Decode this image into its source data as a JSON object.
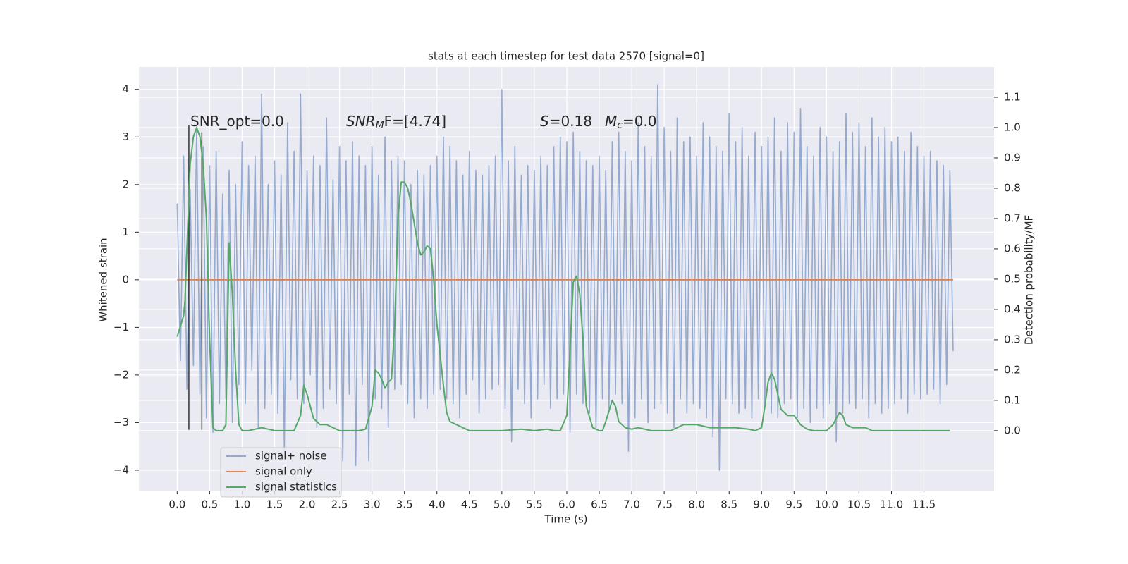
{
  "chart_data": {
    "type": "line",
    "title": "stats at each timestep for test data 2570 [signal=0]",
    "xlabel": "Time (s)",
    "ylabel": "Whitened strain",
    "y2label": "Detection probability/MF",
    "xlim": [
      -0.59,
      12.58
    ],
    "ylim": [
      -4.43,
      4.47
    ],
    "y2lim": [
      -0.198,
      1.2
    ],
    "xticks": [
      {
        "value": 0,
        "label": "0.0"
      },
      {
        "value": 0.5,
        "label": "0.5"
      },
      {
        "value": 1,
        "label": "1.0"
      },
      {
        "value": 1.5,
        "label": "1.5"
      },
      {
        "value": 2,
        "label": "2.0"
      },
      {
        "value": 2.5,
        "label": "2.5"
      },
      {
        "value": 3,
        "label": "3.0"
      },
      {
        "value": 3.5,
        "label": "3.5"
      },
      {
        "value": 4,
        "label": "4.0"
      },
      {
        "value": 4.5,
        "label": "4.5"
      },
      {
        "value": 5,
        "label": "5.0"
      },
      {
        "value": 5.5,
        "label": "5.5"
      },
      {
        "value": 6,
        "label": "6.0"
      },
      {
        "value": 6.5,
        "label": "6.5"
      },
      {
        "value": 7,
        "label": "7.0"
      },
      {
        "value": 7.5,
        "label": "7.5"
      },
      {
        "value": 8,
        "label": "8.0"
      },
      {
        "value": 8.5,
        "label": "8.5"
      },
      {
        "value": 9,
        "label": "9.0"
      },
      {
        "value": 9.5,
        "label": "9.5"
      },
      {
        "value": 10,
        "label": "10.0"
      },
      {
        "value": 10.5,
        "label": "10.5"
      },
      {
        "value": 11,
        "label": "11.0"
      },
      {
        "value": 11.5,
        "label": "11.5"
      }
    ],
    "yticks": [
      {
        "value": -4,
        "label": "−4"
      },
      {
        "value": -3,
        "label": "−3"
      },
      {
        "value": -2,
        "label": "−2"
      },
      {
        "value": -1,
        "label": "−1"
      },
      0,
      1,
      2,
      3,
      4
    ],
    "y2ticks": [
      {
        "value": 0,
        "label": "0.0"
      },
      {
        "value": 0.1,
        "label": "0.1"
      },
      {
        "value": 0.2,
        "label": "0.2"
      },
      {
        "value": 0.3,
        "label": "0.3"
      },
      {
        "value": 0.4,
        "label": "0.4"
      },
      {
        "value": 0.5,
        "label": "0.5"
      },
      {
        "value": 0.6,
        "label": "0.6"
      },
      {
        "value": 0.7,
        "label": "0.7"
      },
      {
        "value": 0.8,
        "label": "0.8"
      },
      {
        "value": 0.9,
        "label": "0.9"
      },
      {
        "value": 1,
        "label": "1.0"
      },
      {
        "value": 1.1,
        "label": "1.1"
      }
    ],
    "grid": true,
    "legend": "lower left",
    "annotations": [
      {
        "base": "SNR_opt=0.0"
      },
      {
        "base": "SNR",
        "sub": "M",
        "tail": "F=[4.74]"
      },
      {
        "base": "S",
        "tail": "=0.18"
      },
      {
        "base": "M",
        "sub": "c",
        "tail": "=0.0"
      }
    ],
    "vlines": [
      {
        "x": 0.18,
        "ymin": -3.15,
        "ymax": 3.25
      },
      {
        "x": 0.38,
        "ymin": -3.15,
        "ymax": 3.1
      }
    ],
    "vline_color": "#333333",
    "series": [
      {
        "name": "signal+ noise",
        "color": "#4c72b0",
        "opacity": 0.55,
        "x": [
          0,
          0.05,
          0.1,
          0.15,
          0.2,
          0.25,
          0.3,
          0.35,
          0.4,
          0.45,
          0.5,
          0.55,
          0.6,
          0.65,
          0.7,
          0.75,
          0.8,
          0.85,
          0.9,
          0.95,
          1,
          1.05,
          1.1,
          1.15,
          1.2,
          1.25,
          1.3,
          1.35,
          1.4,
          1.45,
          1.5,
          1.55,
          1.6,
          1.65,
          1.7,
          1.75,
          1.8,
          1.85,
          1.9,
          1.95,
          2,
          2.05,
          2.1,
          2.15,
          2.2,
          2.25,
          2.3,
          2.35,
          2.4,
          2.45,
          2.5,
          2.55,
          2.6,
          2.65,
          2.7,
          2.75,
          2.8,
          2.85,
          2.9,
          2.95,
          3,
          3.05,
          3.1,
          3.15,
          3.2,
          3.25,
          3.3,
          3.35,
          3.4,
          3.45,
          3.5,
          3.55,
          3.6,
          3.65,
          3.7,
          3.75,
          3.8,
          3.85,
          3.9,
          3.95,
          4,
          4.05,
          4.1,
          4.15,
          4.2,
          4.25,
          4.3,
          4.35,
          4.4,
          4.45,
          4.5,
          4.55,
          4.6,
          4.65,
          4.7,
          4.75,
          4.8,
          4.85,
          4.9,
          4.95,
          5,
          5.05,
          5.1,
          5.15,
          5.2,
          5.25,
          5.3,
          5.35,
          5.4,
          5.45,
          5.5,
          5.55,
          5.6,
          5.65,
          5.7,
          5.75,
          5.8,
          5.85,
          5.9,
          5.95,
          6,
          6.05,
          6.1,
          6.15,
          6.2,
          6.25,
          6.3,
          6.35,
          6.4,
          6.45,
          6.5,
          6.55,
          6.6,
          6.65,
          6.7,
          6.75,
          6.8,
          6.85,
          6.9,
          6.95,
          7,
          7.05,
          7.1,
          7.15,
          7.2,
          7.25,
          7.3,
          7.35,
          7.4,
          7.45,
          7.5,
          7.55,
          7.6,
          7.65,
          7.7,
          7.75,
          7.8,
          7.85,
          7.9,
          7.95,
          8,
          8.05,
          8.1,
          8.15,
          8.2,
          8.25,
          8.3,
          8.35,
          8.4,
          8.45,
          8.5,
          8.55,
          8.6,
          8.65,
          8.7,
          8.75,
          8.8,
          8.85,
          8.9,
          8.95,
          9,
          9.05,
          9.1,
          9.15,
          9.2,
          9.25,
          9.3,
          9.35,
          9.4,
          9.45,
          9.5,
          9.55,
          9.6,
          9.65,
          9.7,
          9.75,
          9.8,
          9.85,
          9.9,
          9.95,
          10,
          10.05,
          10.1,
          10.15,
          10.2,
          10.25,
          10.3,
          10.35,
          10.4,
          10.45,
          10.5,
          10.55,
          10.6,
          10.65,
          10.7,
          10.75,
          10.8,
          10.85,
          10.9,
          10.95,
          11,
          11.05,
          11.1,
          11.15,
          11.2,
          11.25,
          11.3,
          11.35,
          11.4,
          11.45,
          11.5,
          11.55,
          11.6,
          11.65,
          11.7,
          11.75,
          11.8,
          11.85,
          11.9,
          11.95
        ],
        "values": [
          1.6,
          -1.7,
          2.6,
          -2.3,
          1.9,
          -1.8,
          3.2,
          -2.4,
          2.8,
          -2.9,
          2.4,
          -3.2,
          2.7,
          -2.6,
          1.8,
          -2.5,
          2.3,
          -3.0,
          2.0,
          -2.2,
          2.9,
          -2.6,
          2.4,
          -1.9,
          2.6,
          -3.1,
          3.9,
          -2.7,
          2.0,
          -2.4,
          2.5,
          -2.8,
          2.2,
          -3.6,
          3.3,
          -2.1,
          2.7,
          -2.5,
          3.9,
          -2.6,
          2.3,
          -2.0,
          2.6,
          -3.1,
          2.4,
          -2.7,
          3.4,
          -2.3,
          2.1,
          -2.6,
          2.8,
          -3.8,
          2.5,
          -2.4,
          2.9,
          -3.9,
          2.6,
          -2.2,
          2.4,
          -3.8,
          2.8,
          -2.5,
          2.2,
          -2.7,
          3.0,
          -3.1,
          2.5,
          -2.3,
          2.6,
          -2.2,
          2.5,
          -2.6,
          2.0,
          -2.9,
          2.3,
          -2.5,
          2.2,
          -2.7,
          2.4,
          -2.4,
          2.6,
          -2.3,
          3.0,
          -2.5,
          2.8,
          -2.6,
          2.5,
          -2.9,
          2.2,
          -2.4,
          2.7,
          -2.1,
          2.3,
          -2.8,
          2.2,
          -2.5,
          2.4,
          -2.3,
          2.6,
          -2.2,
          4.0,
          -2.7,
          2.5,
          -3.4,
          2.8,
          -2.3,
          2.2,
          -2.6,
          2.4,
          -2.9,
          2.3,
          -2.5,
          2.6,
          -2.2,
          2.4,
          -2.7,
          2.8,
          -2.5,
          3.0,
          -2.4,
          2.9,
          -3.2,
          3.1,
          -2.4,
          2.7,
          -2.6,
          2.5,
          -2.8,
          2.4,
          -3.1,
          2.6,
          -2.5,
          2.3,
          -2.7,
          2.9,
          -2.4,
          3.1,
          -2.6,
          2.7,
          -3.6,
          2.5,
          -2.9,
          3.3,
          -2.5,
          2.8,
          -3.0,
          2.6,
          -2.7,
          4.1,
          -2.6,
          3.2,
          -2.8,
          2.7,
          -3.1,
          3.4,
          -2.5,
          2.9,
          -2.8,
          3.0,
          -2.6,
          2.6,
          -2.7,
          3.3,
          -2.9,
          3.0,
          -3.3,
          2.8,
          -4.0,
          2.7,
          -2.5,
          3.5,
          -2.6,
          2.9,
          -2.8,
          3.2,
          -2.7,
          2.6,
          -2.9,
          3.1,
          -2.5,
          2.8,
          -2.6,
          3.0,
          -2.8,
          3.4,
          -2.9,
          2.7,
          -2.6,
          3.3,
          -2.5,
          3.1,
          -2.9,
          3.6,
          -2.7,
          2.8,
          -3.0,
          2.6,
          -2.7,
          3.2,
          -2.9,
          3.0,
          -2.6,
          2.7,
          -3.4,
          2.9,
          -2.8,
          3.5,
          -2.6,
          3.1,
          -2.7,
          3.3,
          -2.5,
          2.8,
          -2.9,
          3.4,
          -2.6,
          3.0,
          -2.8,
          3.2,
          -2.7,
          2.9,
          -2.6,
          3.0,
          -2.5,
          2.7,
          -2.8,
          3.1,
          -2.4,
          2.8,
          -2.5,
          2.6,
          -2.4,
          2.7,
          -2.3,
          2.5,
          -2.6,
          2.4,
          -2.2,
          2.3,
          -1.5
        ]
      },
      {
        "name": "signal only",
        "color": "#dd8452",
        "opacity": 1,
        "x": [
          0,
          11.95
        ],
        "values": [
          0,
          0
        ]
      },
      {
        "name": "signal statistics",
        "color": "#55a868",
        "opacity": 1,
        "axis": "y2",
        "x": [
          0,
          0.1,
          0.12,
          0.2,
          0.25,
          0.3,
          0.35,
          0.4,
          0.45,
          0.5,
          0.55,
          0.6,
          0.65,
          0.7,
          0.75,
          0.8,
          0.85,
          0.9,
          0.95,
          1,
          1.1,
          1.2,
          1.3,
          1.4,
          1.5,
          1.7,
          1.8,
          1.9,
          1.95,
          2,
          2.1,
          2.2,
          2.3,
          2.4,
          2.5,
          2.8,
          2.9,
          3,
          3.05,
          3.1,
          3.15,
          3.2,
          3.25,
          3.3,
          3.35,
          3.4,
          3.45,
          3.5,
          3.55,
          3.6,
          3.7,
          3.75,
          3.8,
          3.85,
          3.9,
          3.95,
          4,
          4.1,
          4.15,
          4.2,
          4.3,
          4.4,
          4.5,
          5,
          5.3,
          5.5,
          5.7,
          5.8,
          5.9,
          6,
          6.1,
          6.15,
          6.2,
          6.25,
          6.3,
          6.4,
          6.5,
          6.55,
          6.6,
          6.7,
          6.75,
          6.8,
          6.9,
          7,
          7.1,
          7.2,
          7.3,
          7.6,
          7.7,
          7.8,
          8,
          8.2,
          8.4,
          8.6,
          8.8,
          8.9,
          9,
          9.05,
          9.1,
          9.15,
          9.2,
          9.3,
          9.4,
          9.5,
          9.6,
          9.7,
          9.8,
          10,
          10.1,
          10.2,
          10.25,
          10.3,
          10.4,
          10.6,
          10.7,
          11,
          11.5,
          11.9
        ],
        "values": [
          0.31,
          0.38,
          0.43,
          0.88,
          0.97,
          1.0,
          0.97,
          0.88,
          0.7,
          0.3,
          0.01,
          0.0,
          0.0,
          0.0,
          0.02,
          0.62,
          0.45,
          0.2,
          0.02,
          0.0,
          0.0,
          0.005,
          0.01,
          0.005,
          0.0,
          0.0,
          0.0,
          0.05,
          0.15,
          0.12,
          0.04,
          0.02,
          0.02,
          0.01,
          0.0,
          0.0,
          0.005,
          0.08,
          0.2,
          0.19,
          0.17,
          0.14,
          0.16,
          0.17,
          0.35,
          0.7,
          0.82,
          0.82,
          0.8,
          0.75,
          0.62,
          0.58,
          0.59,
          0.61,
          0.6,
          0.5,
          0.35,
          0.15,
          0.06,
          0.03,
          0.02,
          0.01,
          0.0,
          0.0,
          0.005,
          0.0,
          0.005,
          0.0,
          0.0,
          0.05,
          0.49,
          0.51,
          0.45,
          0.3,
          0.08,
          0.01,
          0.0,
          0.0,
          0.03,
          0.1,
          0.08,
          0.03,
          0.01,
          0.005,
          0.01,
          0.005,
          0.0,
          0.0,
          0.01,
          0.02,
          0.02,
          0.01,
          0.01,
          0.01,
          0.005,
          0.0,
          0.01,
          0.08,
          0.16,
          0.19,
          0.17,
          0.07,
          0.05,
          0.05,
          0.02,
          0.005,
          0.0,
          0.0,
          0.02,
          0.06,
          0.05,
          0.02,
          0.01,
          0.01,
          0.0,
          0.0,
          0.0,
          0.0
        ]
      }
    ]
  }
}
